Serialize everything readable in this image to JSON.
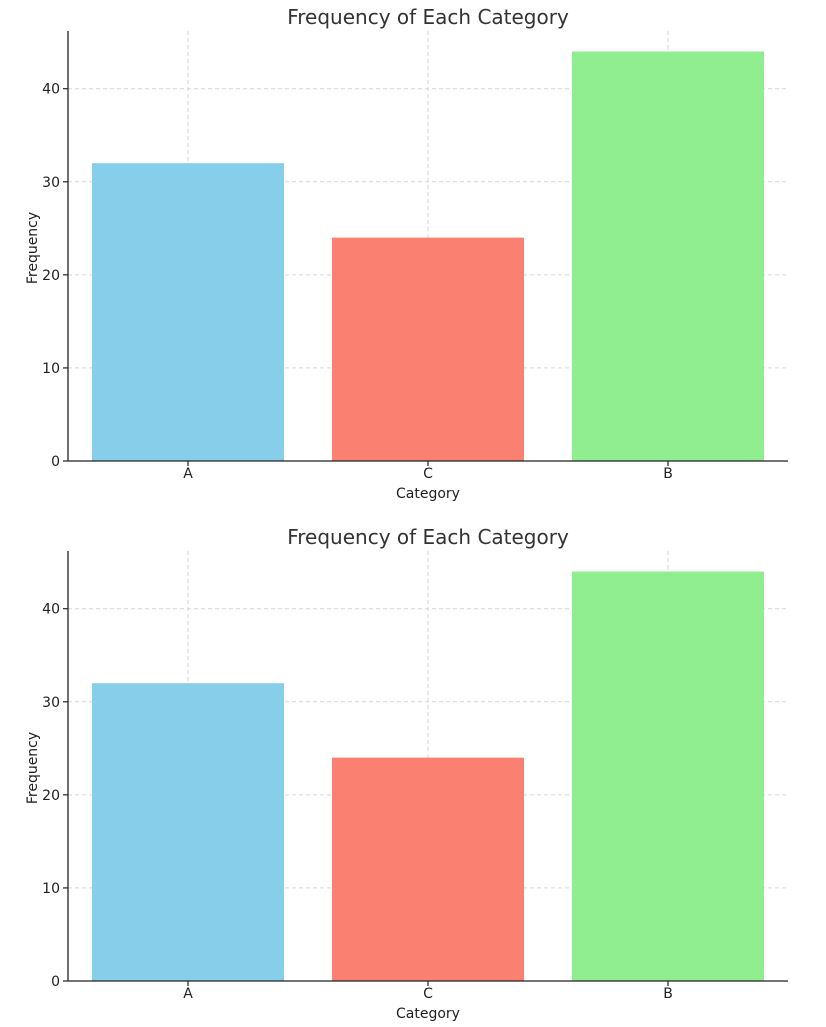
{
  "chart_data": [
    {
      "type": "bar",
      "title": "Frequency of Each Category",
      "xlabel": "Category",
      "ylabel": "Frequency",
      "categories": [
        "A",
        "C",
        "B"
      ],
      "values": [
        32,
        24,
        44
      ],
      "colors": [
        "#87ceeb",
        "#fa8072",
        "#90ee90"
      ],
      "yticks": [
        0,
        10,
        20,
        30,
        40
      ],
      "ylim": [
        0,
        46.2
      ],
      "grid": true
    },
    {
      "type": "bar",
      "title": "Frequency of Each Category",
      "xlabel": "Category",
      "ylabel": "Frequency",
      "categories": [
        "A",
        "C",
        "B"
      ],
      "values": [
        32,
        24,
        44
      ],
      "colors": [
        "#87ceeb",
        "#fa8072",
        "#90ee90"
      ],
      "yticks": [
        0,
        10,
        20,
        30,
        40
      ],
      "ylim": [
        0,
        46.2
      ],
      "grid": true
    }
  ]
}
